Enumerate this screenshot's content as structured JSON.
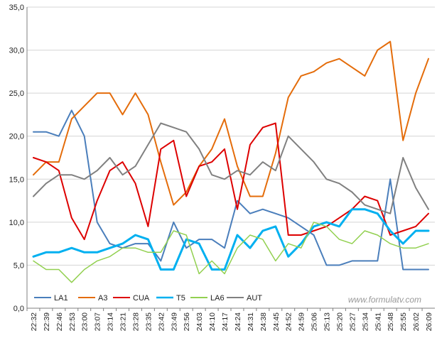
{
  "chart_data": {
    "type": "line",
    "title": "",
    "xlabel": "",
    "ylabel": "",
    "watermark": "www.formulatv.com",
    "ylim": [
      0,
      35
    ],
    "yticks": [
      "0,0",
      "5,0",
      "10,0",
      "15,0",
      "20,0",
      "25,0",
      "30,0",
      "35,0"
    ],
    "ytick_values": [
      0,
      5,
      10,
      15,
      20,
      25,
      30,
      35
    ],
    "grid": true,
    "legend_position": "bottom-left",
    "x": [
      "22:32",
      "22:39",
      "22:46",
      "22:53",
      "23:00",
      "23:07",
      "23:14",
      "23:21",
      "23:28",
      "23:35",
      "23:42",
      "23:49",
      "23:56",
      "24:03",
      "24:10",
      "24:17",
      "24:24",
      "24:31",
      "24:38",
      "24:45",
      "24:52",
      "24:59",
      "25:06",
      "25:13",
      "25:20",
      "25:27",
      "25:34",
      "25:41",
      "25:48",
      "25:55",
      "26:02",
      "26:09"
    ],
    "series": [
      {
        "name": "LA1",
        "color": "#4a7ebb",
        "width": 2,
        "values": [
          20.5,
          20.5,
          20.0,
          23.0,
          20.0,
          10.0,
          7.5,
          7.0,
          7.5,
          7.5,
          5.5,
          10.0,
          7.0,
          8.0,
          8.0,
          7.0,
          12.5,
          11.0,
          11.5,
          11.0,
          10.5,
          9.5,
          8.5,
          5.0,
          5.0,
          5.5,
          5.5,
          5.5,
          15.0,
          4.5,
          4.5,
          4.5
        ]
      },
      {
        "name": "A3",
        "color": "#e46c0a",
        "width": 2,
        "values": [
          15.5,
          17.0,
          17.0,
          22.0,
          23.5,
          25.0,
          25.0,
          22.5,
          25.0,
          22.5,
          17.0,
          12.0,
          13.5,
          16.5,
          18.5,
          22.0,
          16.5,
          13.0,
          13.0,
          18.0,
          24.5,
          27.0,
          27.5,
          28.5,
          29.0,
          28.0,
          27.0,
          30.0,
          31.0,
          19.5,
          25.0,
          29.0
        ]
      },
      {
        "name": "CUA",
        "color": "#dd0000",
        "width": 2,
        "values": [
          17.5,
          17.0,
          16.0,
          10.5,
          8.0,
          12.5,
          16.0,
          17.0,
          14.5,
          9.5,
          18.5,
          19.5,
          13.0,
          16.5,
          17.0,
          18.5,
          11.5,
          19.0,
          21.0,
          21.5,
          8.5,
          8.5,
          9.0,
          9.5,
          10.5,
          11.5,
          13.0,
          12.5,
          8.5,
          9.0,
          9.5,
          11.0
        ]
      },
      {
        "name": "T5",
        "color": "#00b0f0",
        "width": 3,
        "values": [
          6.0,
          6.5,
          6.5,
          7.0,
          6.5,
          6.5,
          7.0,
          7.5,
          8.5,
          8.0,
          4.5,
          4.5,
          8.0,
          7.5,
          4.5,
          4.5,
          8.5,
          7.0,
          9.0,
          9.5,
          6.0,
          7.5,
          9.5,
          10.0,
          9.5,
          11.5,
          11.5,
          11.0,
          9.0,
          7.5,
          9.0,
          9.0
        ]
      },
      {
        "name": "LA6",
        "color": "#92d050",
        "width": 1.5,
        "values": [
          5.5,
          4.5,
          4.5,
          3.0,
          4.5,
          5.5,
          6.0,
          7.0,
          7.0,
          6.5,
          6.5,
          9.0,
          8.5,
          4.0,
          5.5,
          4.0,
          7.0,
          8.5,
          8.0,
          5.5,
          7.5,
          7.0,
          10.0,
          9.5,
          8.0,
          7.5,
          9.0,
          8.5,
          7.5,
          7.0,
          7.0,
          7.5
        ]
      },
      {
        "name": "AUT",
        "color": "#808080",
        "width": 2,
        "values": [
          13.0,
          14.5,
          15.5,
          15.5,
          15.0,
          16.0,
          17.5,
          15.5,
          16.5,
          19.0,
          21.5,
          21.0,
          20.5,
          18.5,
          15.5,
          15.0,
          16.0,
          15.5,
          17.0,
          16.0,
          20.0,
          18.5,
          17.0,
          15.0,
          14.5,
          13.5,
          12.0,
          11.5,
          11.0,
          17.5,
          14.0,
          11.5
        ]
      }
    ]
  }
}
